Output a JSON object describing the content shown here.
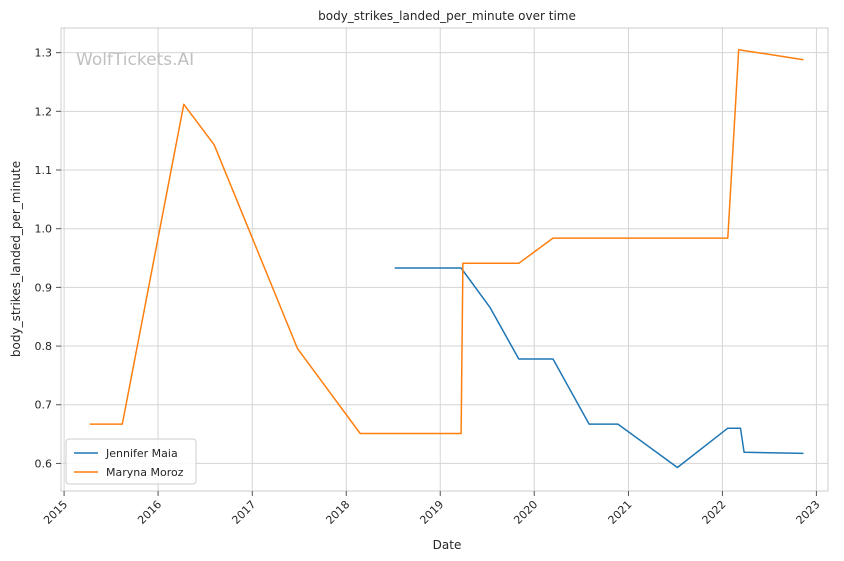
{
  "chart_data": {
    "type": "line",
    "title": "body_strikes_landed_per_minute over time",
    "xlabel": "Date",
    "ylabel": "body_strikes_landed_per_minute",
    "watermark": "WolfTickets.AI",
    "grid": true,
    "legend_position": "bottom-left",
    "xlim": [
      "2014-12-20",
      "2023-02-15"
    ],
    "ylim": [
      0.553,
      1.342
    ],
    "x_ticks": [
      "2015-01-01",
      "2016-01-01",
      "2017-01-01",
      "2018-01-01",
      "2019-01-01",
      "2020-01-01",
      "2021-01-01",
      "2022-01-01",
      "2023-01-01"
    ],
    "x_tick_labels": [
      "2015",
      "2016",
      "2017",
      "2018",
      "2019",
      "2020",
      "2021",
      "2022",
      "2023"
    ],
    "y_ticks": [
      0.6,
      0.7,
      0.8,
      0.9,
      1.0,
      1.1,
      1.2,
      1.3
    ],
    "y_tick_labels": [
      "0.6",
      "0.7",
      "0.8",
      "0.9",
      "1.0",
      "1.1",
      "1.2",
      "1.3"
    ],
    "series": [
      {
        "name": "Jennifer Maia",
        "color": "#1f77b4",
        "points": [
          {
            "x": "2018-07-08",
            "y": 0.933
          },
          {
            "x": "2019-03-23",
            "y": 0.933
          },
          {
            "x": "2019-07-13",
            "y": 0.866
          },
          {
            "x": "2019-11-02",
            "y": 0.778
          },
          {
            "x": "2020-03-14",
            "y": 0.778
          },
          {
            "x": "2020-08-01",
            "y": 0.667
          },
          {
            "x": "2020-11-21",
            "y": 0.667
          },
          {
            "x": "2021-07-10",
            "y": 0.593
          },
          {
            "x": "2022-01-22",
            "y": 0.66
          },
          {
            "x": "2022-03-12",
            "y": 0.66
          },
          {
            "x": "2022-03-26",
            "y": 0.619
          },
          {
            "x": "2022-11-12",
            "y": 0.617
          }
        ]
      },
      {
        "name": "Maryna Moroz",
        "color": "#ff7f0e",
        "points": [
          {
            "x": "2015-04-11",
            "y": 0.667
          },
          {
            "x": "2015-08-15",
            "y": 0.667
          },
          {
            "x": "2016-04-10",
            "y": 1.212
          },
          {
            "x": "2016-08-06",
            "y": 1.143
          },
          {
            "x": "2017-06-25",
            "y": 0.796
          },
          {
            "x": "2018-02-24",
            "y": 0.651
          },
          {
            "x": "2019-03-23",
            "y": 0.651
          },
          {
            "x": "2019-03-30",
            "y": 0.941
          },
          {
            "x": "2019-11-02",
            "y": 0.941
          },
          {
            "x": "2020-03-14",
            "y": 0.984
          },
          {
            "x": "2022-01-22",
            "y": 0.984
          },
          {
            "x": "2022-03-05",
            "y": 1.305
          },
          {
            "x": "2022-11-12",
            "y": 1.288
          }
        ]
      }
    ]
  }
}
